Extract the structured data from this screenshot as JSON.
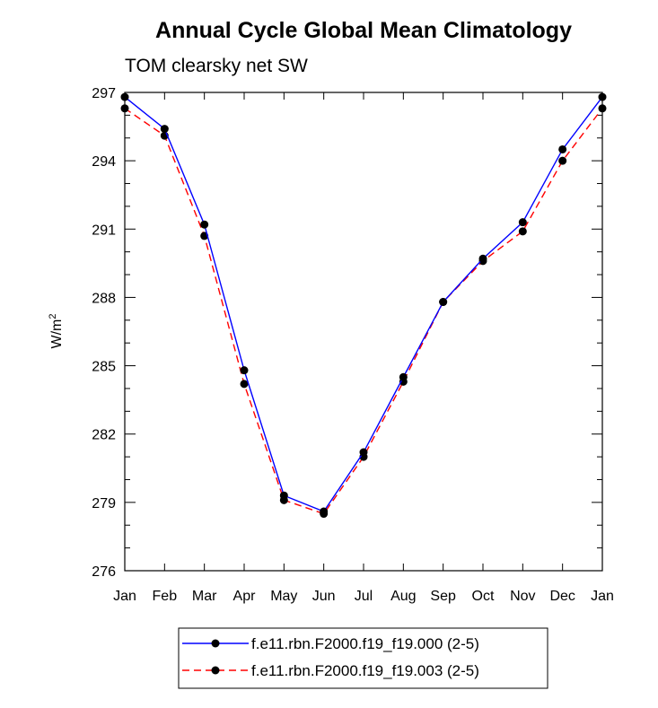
{
  "chart_data": {
    "type": "line",
    "title": "Annual Cycle Global Mean Climatology",
    "subtitle": "TOM clearsky net SW",
    "ylabel_base": "W/m",
    "ylabel_sup": "2",
    "xlabel": "",
    "categories": [
      "Jan",
      "Feb",
      "Mar",
      "Apr",
      "May",
      "Jun",
      "Jul",
      "Aug",
      "Sep",
      "Oct",
      "Nov",
      "Dec",
      "Jan"
    ],
    "ylim": [
      276,
      297
    ],
    "yticks": [
      276,
      279,
      282,
      285,
      288,
      291,
      294,
      297
    ],
    "grid": false,
    "legend_position": "bottom-center",
    "series": [
      {
        "name": "f.e11.rbn.F2000.f19_f19.000 (2-5)",
        "color": "#0000ff",
        "dash": "solid",
        "values": [
          296.8,
          295.4,
          291.2,
          284.8,
          279.3,
          278.6,
          281.2,
          284.5,
          287.8,
          289.7,
          291.3,
          294.5,
          296.8
        ]
      },
      {
        "name": "f.e11.rbn.F2000.f19_f19.003 (2-5)",
        "color": "#ff0000",
        "dash": "dashed",
        "values": [
          296.3,
          295.1,
          290.7,
          284.2,
          279.1,
          278.5,
          281.0,
          284.3,
          287.8,
          289.6,
          290.9,
          294.0,
          296.3
        ]
      }
    ]
  }
}
